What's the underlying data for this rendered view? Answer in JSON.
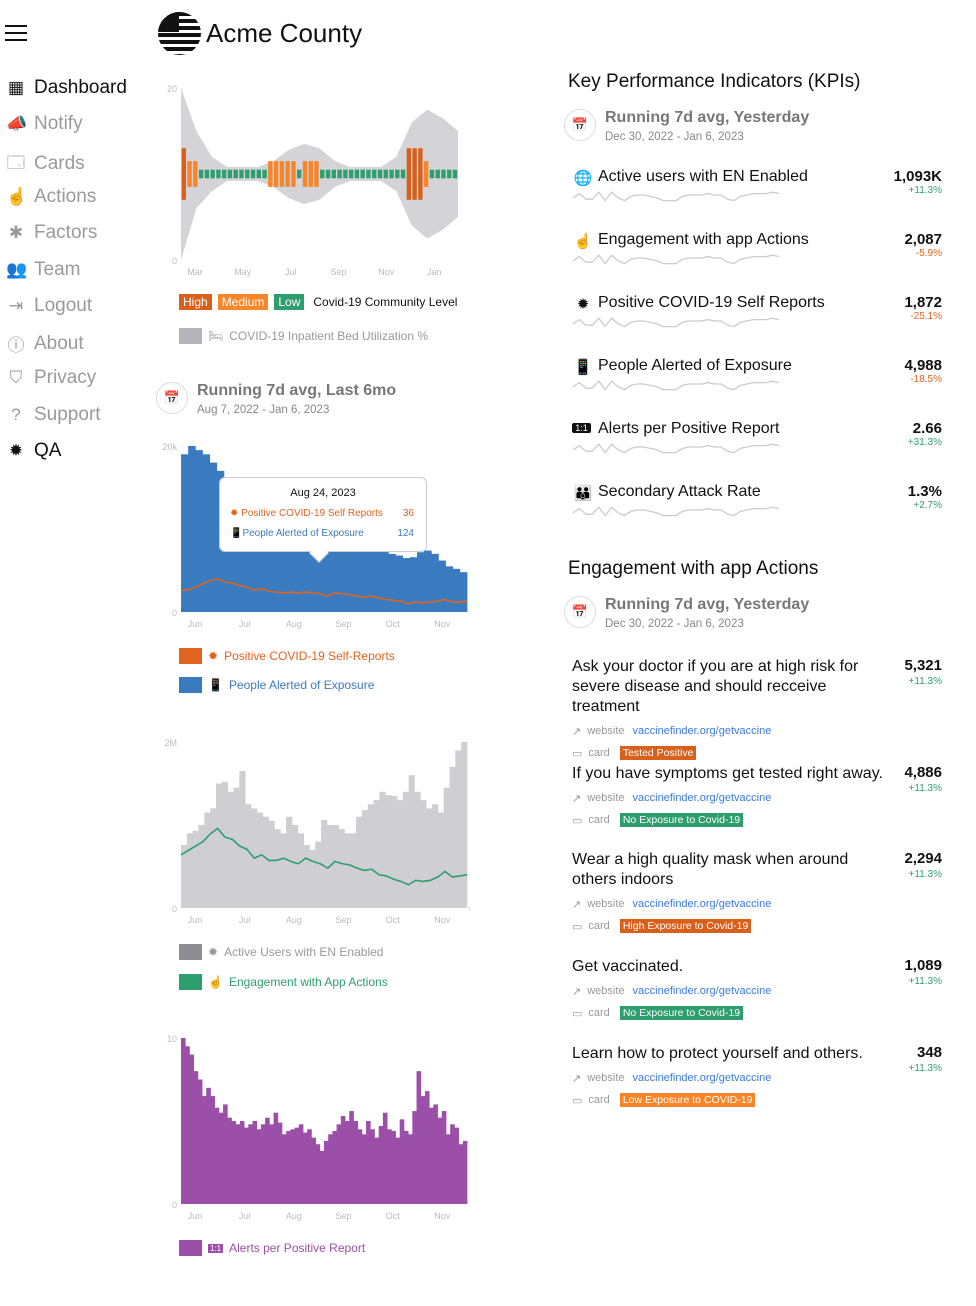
{
  "header": {
    "title": "Acme County",
    "menu_icon": "hamburger-icon",
    "logo": "us-flag-globe-logo"
  },
  "sidebar": {
    "items": [
      {
        "label": "Dashboard",
        "icon": "dashboard-icon",
        "glyph": "▦",
        "active": true
      },
      {
        "label": "Notify",
        "icon": "megaphone-icon",
        "glyph": "📣",
        "active": false
      },
      {
        "label": "Cards",
        "icon": "cards-icon",
        "glyph": "🗔",
        "active": false
      },
      {
        "label": "Actions",
        "icon": "touch-icon",
        "glyph": "☝",
        "active": false
      },
      {
        "label": "Factors",
        "icon": "asterisk-icon",
        "glyph": "✱",
        "active": false
      },
      {
        "label": "Team",
        "icon": "team-icon",
        "glyph": "👥",
        "active": false
      },
      {
        "label": "Logout",
        "icon": "logout-icon",
        "glyph": "⇥",
        "active": false
      },
      {
        "label": "About",
        "icon": "info-icon",
        "glyph": "ⓘ",
        "active": false
      },
      {
        "label": "Privacy",
        "icon": "shield-icon",
        "glyph": "⛉",
        "active": false
      },
      {
        "label": "Support",
        "icon": "help-icon",
        "glyph": "?",
        "active": false
      },
      {
        "label": "QA",
        "icon": "bug-icon",
        "glyph": "✹",
        "active": true
      }
    ]
  },
  "colors": {
    "high": "#d9601b",
    "medium": "#f7852a",
    "low": "#2e9e6e",
    "bed": "#d3d3d8",
    "blue": "#3a7bbf",
    "orange": "#e0641e",
    "gray": "#cfcfd3",
    "green": "#2e9e6e",
    "purple": "#9b4fa8",
    "pos": "#2e9e6e",
    "neg": "#e0641e",
    "link": "#3b7be0"
  },
  "community": {
    "levels_legend": [
      "High",
      "Medium",
      "Low"
    ],
    "legend_title": "Covid-19 Community Level",
    "bed_legend": "COVID-19 Inpatient Bed Utilization %"
  },
  "last6mo": {
    "title": "Running 7d avg, Last 6mo",
    "dates": "Aug 7, 2022 - Jan 6, 2023"
  },
  "tooltip": {
    "date": "Aug 24, 2023",
    "rows": [
      {
        "label": "Positive COVID-19 Self Reports",
        "value": "36"
      },
      {
        "label": "People Alerted of Exposure",
        "value": "124"
      }
    ]
  },
  "chart_data": [
    {
      "type": "bar",
      "title": "",
      "yticks": [
        "0",
        "20"
      ],
      "ylim": [
        0,
        20
      ],
      "xticks": [
        "Mar",
        "May",
        "Jul",
        "Sep",
        "Nov",
        "Jan"
      ],
      "levels": [
        "High",
        "Medium",
        "Medium",
        "Low",
        "Low",
        "Low",
        "Low",
        "Low",
        "Low",
        "Low",
        "Low",
        "Low",
        "Low",
        "Low",
        "Low",
        "Medium",
        "Medium",
        "Medium",
        "Medium",
        "Medium",
        "Low",
        "Medium",
        "Medium",
        "Medium",
        "Low",
        "Low",
        "Low",
        "Low",
        "Low",
        "Low",
        "Low",
        "Low",
        "Low",
        "Low",
        "Low",
        "Low",
        "Low",
        "Low",
        "Low",
        "High",
        "High",
        "High",
        "Medium",
        "Low",
        "Low",
        "Low",
        "Low",
        "Low"
      ],
      "bed_util_upper": [
        20,
        15,
        12,
        10.8,
        10.8,
        10.8,
        11.5,
        12.8,
        13.5,
        13,
        11.5,
        10.8,
        10.8,
        10.8,
        12,
        16,
        17.5,
        16.5,
        15
      ],
      "bed_util_lower": [
        0,
        6,
        8,
        9.2,
        9.2,
        9.2,
        8.5,
        7.2,
        6.5,
        7,
        8.5,
        9.2,
        9.2,
        9.2,
        8,
        4,
        2.5,
        3.5,
        5
      ]
    },
    {
      "type": "area",
      "yticks": [
        "0",
        "20k"
      ],
      "ylim": [
        0,
        20000
      ],
      "xticks": [
        "Jun",
        "Jul",
        "Aug",
        "Sep",
        "Oct",
        "Nov"
      ],
      "series": [
        {
          "name": "People Alerted of Exposure",
          "kind": "area",
          "values": [
            19000,
            20000,
            19500,
            19000,
            18000,
            17000,
            16000,
            15500,
            14500,
            13500,
            12000,
            11500,
            10500,
            10000,
            9500,
            9000,
            8500,
            8000,
            8500,
            8000,
            8200,
            7500,
            7300,
            7800,
            8000,
            8300,
            8200,
            8000,
            7800,
            7000,
            6800,
            6500,
            6600,
            7200,
            7400,
            7000,
            6200,
            5500,
            5200,
            4800
          ]
        },
        {
          "name": "Positive COVID-19 Self-Reports",
          "kind": "line",
          "values": [
            2600,
            2700,
            3000,
            3400,
            3800,
            4000,
            3600,
            3500,
            3200,
            3000,
            2600,
            2800,
            2500,
            2400,
            2300,
            2400,
            2300,
            2400,
            2300,
            2200,
            1900,
            2300,
            2200,
            2100,
            1900,
            1800,
            1900,
            1700,
            1500,
            1400,
            1300,
            1000,
            1200,
            1100,
            1200,
            1300,
            1500,
            1200,
            1200,
            1300
          ]
        }
      ],
      "legend": [
        "Positive COVID-19 Self-Reports",
        "People Alerted of Exposure"
      ]
    },
    {
      "type": "area",
      "yticks": [
        "0",
        "2M"
      ],
      "y2ticks": [
        "0",
        "15"
      ],
      "ylim": [
        0,
        2000000
      ],
      "xticks": [
        "Jun",
        "Jul",
        "Aug",
        "Sep",
        "Oct",
        "Nov"
      ],
      "series": [
        {
          "name": "Active Users with EN Enabled",
          "kind": "bars",
          "values": [
            760,
            900,
            930,
            1000,
            1150,
            1200,
            1500,
            1520,
            1400,
            1450,
            1650,
            1250,
            1200,
            1150,
            1100,
            1050,
            950,
            900,
            1100,
            1000,
            900,
            760,
            700,
            800,
            1060,
            1000,
            1000,
            950,
            900,
            900,
            1100,
            1180,
            1250,
            1300,
            1400,
            1360,
            1350,
            1300,
            1400,
            1600,
            1400,
            1300,
            1200,
            1250,
            1150,
            1450,
            1700,
            1900,
            2000
          ]
        },
        {
          "name": "Engagement with App Actions",
          "kind": "line",
          "values": [
            4.8,
            5.2,
            5.6,
            6,
            6.7,
            7.2,
            6.4,
            6.2,
            5.6,
            5.3,
            4.5,
            4.8,
            4.3,
            4.3,
            4.5,
            4.2,
            4,
            4.5,
            4.2,
            4,
            3.6,
            4.2,
            4,
            3.9,
            3.6,
            3.4,
            3.5,
            3.0,
            2.9,
            2.6,
            2.4,
            2.1,
            2.5,
            2.4,
            2.5,
            2.8,
            3.3,
            2.8,
            2.9,
            3.0
          ]
        }
      ],
      "legend": [
        "Active Users with EN Enabled",
        "Engagement with App Actions"
      ]
    },
    {
      "type": "bar",
      "yticks": [
        "0",
        "10"
      ],
      "ylim": [
        0,
        10
      ],
      "xticks": [
        "Jun",
        "Jul",
        "Aug",
        "Sep",
        "Oct",
        "Nov"
      ],
      "series": [
        {
          "name": "Alerts per Positive Report",
          "values": [
            10,
            9.5,
            9,
            8,
            7.5,
            6.5,
            7,
            6.5,
            5.8,
            5.5,
            6,
            5.2,
            5,
            4.8,
            5,
            4.6,
            4.8,
            5,
            4.5,
            4.8,
            5.2,
            4.8,
            5.5,
            4.9,
            4.2,
            4.4,
            4.5,
            4.6,
            4.8,
            4.3,
            4.5,
            4,
            3.6,
            3.2,
            3.8,
            4.2,
            4.4,
            4.8,
            5.3,
            5,
            5.6,
            5,
            4.5,
            4.2,
            5,
            4.5,
            4,
            4.7,
            5.5,
            4.5,
            4.4,
            4,
            5.1,
            4.4,
            4.2,
            5.6,
            8,
            6.5,
            6.8,
            5.8,
            6,
            5.2,
            5.6,
            4.2,
            4.8,
            4.6,
            3.6,
            3.8
          ]
        }
      ],
      "legend": [
        "Alerts per Positive Report"
      ]
    }
  ],
  "kpis": {
    "title": "Key Performance Indicators (KPIs)",
    "running": {
      "title": "Running 7d avg, Yesterday",
      "dates": "Dec 30, 2022 - Jan 6, 2023"
    },
    "items": [
      {
        "label": "Active users with EN Enabled",
        "icon": "globe-users-icon",
        "glyph": "🌐",
        "value": "1,093K",
        "change": "+11.3%",
        "positive": true
      },
      {
        "label": "Engagement with app Actions",
        "icon": "touch-icon",
        "glyph": "☝",
        "value": "2,087",
        "change": "-5.9%",
        "positive": false
      },
      {
        "label": "Positive COVID-19 Self Reports",
        "icon": "virus-icon",
        "glyph": "✹",
        "value": "1,872",
        "change": "-25.1%",
        "positive": false
      },
      {
        "label": "People Alerted  of Exposure",
        "icon": "phone-alert-icon",
        "glyph": "📱",
        "value": "4,988",
        "change": "-18.5%",
        "positive": false
      },
      {
        "label": "Alerts per Positive Report",
        "icon": "ratio-icon",
        "glyph": "1:1",
        "value": "2.66",
        "change": "+31.3%",
        "positive": true
      },
      {
        "label": "Secondary Attack Rate",
        "icon": "people-icon",
        "glyph": "👪",
        "value": "1.3%",
        "change": "+2.7%",
        "positive": true
      }
    ],
    "sparkline": [
      3,
      6,
      2,
      2,
      7,
      1,
      7,
      3,
      1,
      4,
      5,
      5,
      4,
      3,
      1,
      1,
      1,
      4,
      5,
      5,
      5,
      6,
      5,
      5,
      2,
      1,
      4,
      5,
      6,
      6,
      6,
      7,
      6
    ]
  },
  "engagement": {
    "title": "Engagement with app Actions",
    "running": {
      "title": "Running 7d avg, Yesterday",
      "dates": "Dec 30, 2022 - Jan 6, 2023"
    },
    "website_label": "website",
    "card_label": "card",
    "items": [
      {
        "title": "Ask your doctor if you are at high risk for severe disease and should recceive treatment",
        "value": "5,321",
        "change": "+11.3%",
        "link": "vaccinefinder.org/getvaccine",
        "tag": "Tested Positive",
        "tag_color": "#d9601b"
      },
      {
        "title": "If you have symptoms get tested right away.",
        "value": "4,886",
        "change": "+11.3%",
        "link": "vaccinefinder.org/getvaccine",
        "tag": "No Exposure to Covid-19",
        "tag_color": "#2e9e6e"
      },
      {
        "title": "Wear a high quality mask when around others indoors",
        "value": "2,294",
        "change": "+11.3%",
        "link": "vaccinefinder.org/getvaccine",
        "tag": "High Exposure to Covid-19",
        "tag_color": "#d9601b"
      },
      {
        "title": "Get vaccinated.",
        "value": "1,089",
        "change": "+11.3%",
        "link": "vaccinefinder.org/getvaccine",
        "tag": "No Exposure to Covid-19",
        "tag_color": "#2e9e6e"
      },
      {
        "title": "Learn how to protect yourself and others.",
        "value": "348",
        "change": "+11.3%",
        "link": "vaccinefinder.org/getvaccine",
        "tag": "Low Exposure to COVID-19",
        "tag_color": "#f7852a"
      }
    ]
  }
}
